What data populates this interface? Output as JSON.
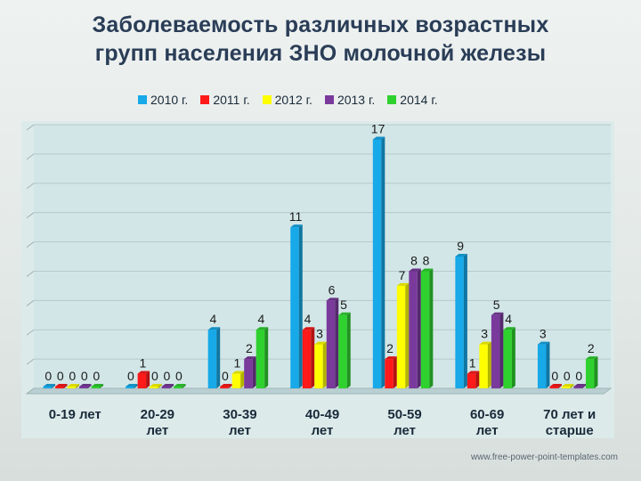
{
  "title_line1": "Заболеваемость различных возрастных",
  "title_line2": "групп населения ЗНО молочной железы",
  "footer": "www.free-power-point-templates.com",
  "colors": {
    "2010 г.": "#17a9e8",
    "2011 г.": "#ff1a1a",
    "2012 г.": "#ffff00",
    "2013 г.": "#7a3a9c",
    "2014 г.": "#2fd12f"
  },
  "chart_data": {
    "type": "bar",
    "title": "Заболеваемость различных возрастных групп населения ЗНО молочной железы",
    "categories": [
      "0-19 лет",
      "20-29 лет",
      "30-39 лет",
      "40-49 лет",
      "50-59 лет",
      "60-69 лет",
      "70 лет и старше"
    ],
    "category_lines": [
      [
        "0-19 лет"
      ],
      [
        "20-29",
        "лет"
      ],
      [
        "30-39",
        "лет"
      ],
      [
        "40-49",
        "лет"
      ],
      [
        "50-59",
        "лет"
      ],
      [
        "60-69",
        "лет"
      ],
      [
        "70 лет и",
        "старше"
      ]
    ],
    "series": [
      {
        "name": "2010 г.",
        "values": [
          0,
          0,
          4,
          11,
          17,
          9,
          3
        ]
      },
      {
        "name": "2011 г.",
        "values": [
          0,
          1,
          0,
          4,
          2,
          1,
          0
        ]
      },
      {
        "name": "2012 г.",
        "values": [
          0,
          0,
          1,
          3,
          7,
          3,
          0
        ]
      },
      {
        "name": "2013 г.",
        "values": [
          0,
          0,
          2,
          6,
          8,
          5,
          0
        ]
      },
      {
        "name": "2014 г.",
        "values": [
          0,
          0,
          4,
          5,
          8,
          4,
          2
        ]
      }
    ],
    "xlabel": "",
    "ylabel": "",
    "ylim": [
      0,
      18
    ],
    "grid": true,
    "legend_position": "top",
    "data_labels": true
  }
}
